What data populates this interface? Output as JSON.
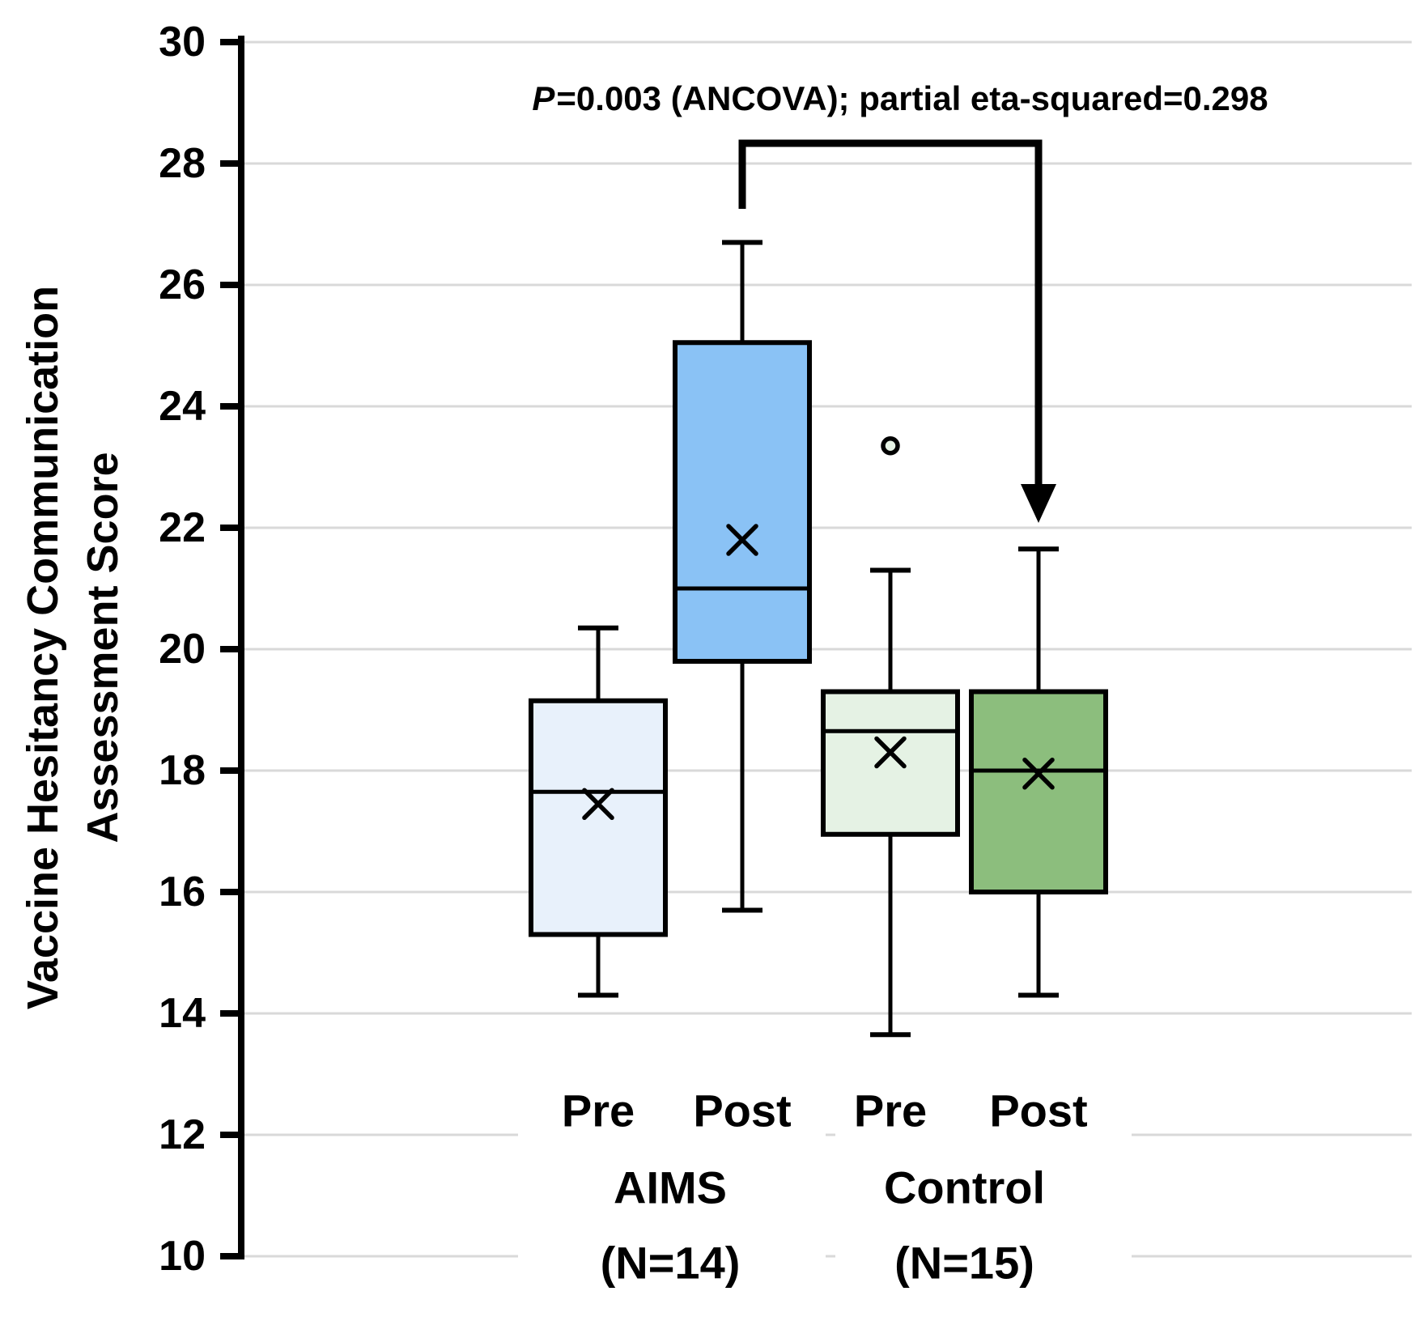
{
  "figure": {
    "y_axis_title_line1": "Vaccine Hesitancy Communication",
    "y_axis_title_line2": "Assessment Score",
    "annotation": {
      "p_symbol": "P",
      "rest": "=0.003 (ANCOVA); partial eta-squared=0.298"
    }
  },
  "chart_data": {
    "type": "boxplot",
    "title": "",
    "ylabel": "Vaccine Hesitancy Communication Assessment Score",
    "xlabel": "",
    "y_axis": {
      "min": 10,
      "max": 30,
      "tick_step": 2,
      "ticks": [
        30,
        28,
        26,
        24,
        22,
        20,
        18,
        16,
        14,
        12,
        10
      ],
      "gridlines": "on"
    },
    "annotation": {
      "text": "P=0.003 (ANCOVA); partial eta-squared=0.298",
      "compares": [
        "Post AIMS",
        "Post Control"
      ]
    },
    "groups": [
      {
        "x_label": "Pre",
        "cohort": "AIMS",
        "fill": "#E8F1FB",
        "whisker_low": 14.3,
        "q1": 15.3,
        "median": 17.65,
        "q3": 19.15,
        "whisker_high": 20.35,
        "mean": 17.45,
        "outliers": []
      },
      {
        "x_label": "Post",
        "cohort": "AIMS",
        "fill": "#8AC2F5",
        "whisker_low": 15.7,
        "q1": 19.8,
        "median": 21.0,
        "q3": 25.05,
        "whisker_high": 26.7,
        "mean": 21.8,
        "outliers": []
      },
      {
        "x_label": "Pre",
        "cohort": "Control",
        "fill": "#E5F2E4",
        "whisker_low": 13.65,
        "q1": 16.95,
        "median": 18.65,
        "q3": 19.3,
        "whisker_high": 21.3,
        "mean": 18.3,
        "outliers": [
          23.35
        ]
      },
      {
        "x_label": "Post",
        "cohort": "Control",
        "fill": "#8CBE7D",
        "whisker_low": 14.3,
        "q1": 16.0,
        "median": 18.0,
        "q3": 19.3,
        "whisker_high": 21.65,
        "mean": 17.95,
        "outliers": []
      }
    ],
    "group_footers": [
      {
        "line1": "AIMS",
        "line2": "(N=14)"
      },
      {
        "line1": "Control",
        "line2": "(N=15)"
      }
    ],
    "colors": {
      "pre_aims_fill": "#E8F1FB",
      "post_aims_fill": "#8AC2F5",
      "pre_control_fill": "#E5F2E4",
      "post_control_fill": "#8CBE7D",
      "gridline": "#D9D9D9",
      "stroke": "#000000"
    }
  }
}
